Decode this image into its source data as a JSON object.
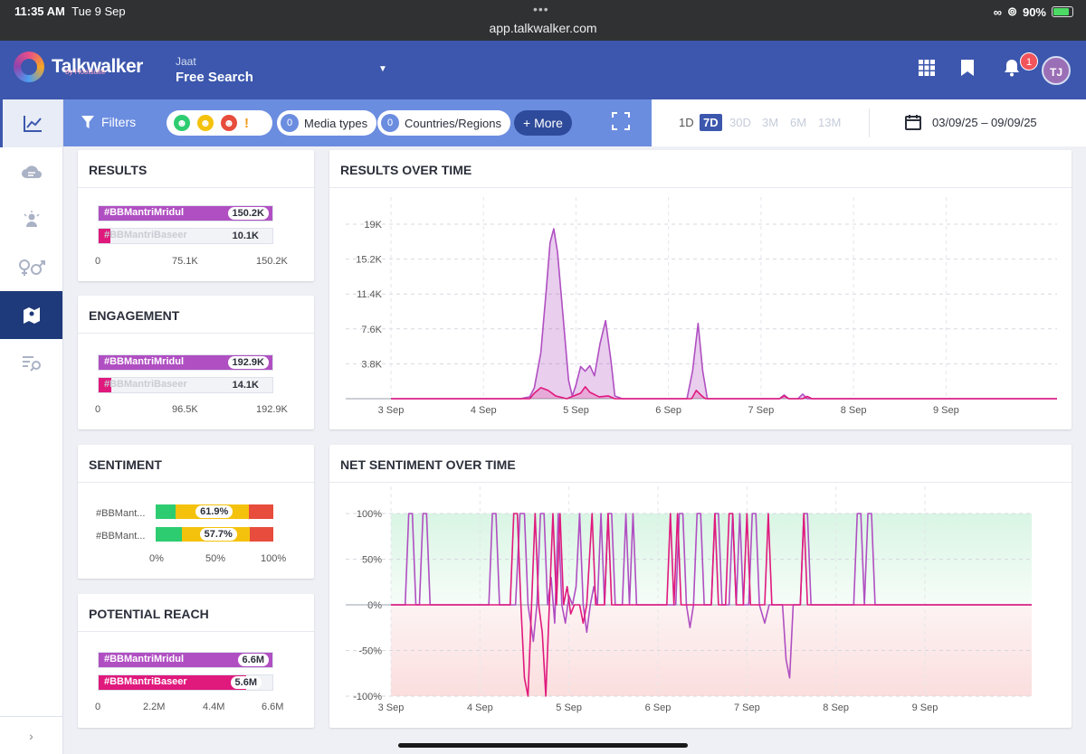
{
  "status": {
    "time": "11:35 AM",
    "date": "Tue 9 Sep",
    "url": "app.talkwalker.com",
    "battery": "90%"
  },
  "header": {
    "brand": "Talkwalker",
    "brand_sub": "by Hootsuite",
    "project_name": "Jaat",
    "project_title": "Free Search",
    "notifications": "1",
    "avatar": "TJ"
  },
  "filters": {
    "label": "Filters",
    "media_count": "0",
    "media_label": "Media types",
    "country_count": "0",
    "country_label": "Countries/Regions",
    "more": "+ More"
  },
  "range": {
    "options": [
      "1D",
      "7D",
      "30D",
      "3M",
      "6M",
      "13M"
    ],
    "active": "7D",
    "dates": "03/09/25 – 09/09/25"
  },
  "cards": {
    "results": {
      "title": "RESULTS",
      "rows": [
        {
          "label": "#BBMantriMridul",
          "value": "150.2K",
          "frac": 1.0
        },
        {
          "label": "#BBMantriBaseer",
          "value": "10.1K",
          "frac": 0.067
        }
      ],
      "ticks": [
        "0",
        "75.1K",
        "150.2K"
      ]
    },
    "engagement": {
      "title": "ENGAGEMENT",
      "rows": [
        {
          "label": "#BBMantriMridul",
          "value": "192.9K",
          "frac": 1.0
        },
        {
          "label": "#BBMantriBaseer",
          "value": "14.1K",
          "frac": 0.073
        }
      ],
      "ticks": [
        "0",
        "96.5K",
        "192.9K"
      ]
    },
    "sentiment": {
      "title": "SENTIMENT",
      "rows": [
        {
          "label": "#BBMant...",
          "value": "61.9%",
          "pos": 0.17,
          "neu": 0.62,
          "neg": 0.21
        },
        {
          "label": "#BBMant...",
          "value": "57.7%",
          "pos": 0.22,
          "neu": 0.58,
          "neg": 0.2
        }
      ],
      "ticks": [
        "0%",
        "50%",
        "100%"
      ]
    },
    "reach": {
      "title": "POTENTIAL REACH",
      "rows": [
        {
          "label": "#BBMantriMridul",
          "value": "6.6M",
          "frac": 1.0
        },
        {
          "label": "#BBMantriBaseer",
          "value": "5.6M",
          "frac": 0.85
        }
      ],
      "ticks": [
        "0",
        "2.2M",
        "4.4M",
        "6.6M"
      ]
    }
  },
  "rot": {
    "title": "RESULTS OVER TIME"
  },
  "nst": {
    "title": "NET SENTIMENT OVER TIME"
  },
  "colors": {
    "mridul": "#b04fc2",
    "baseer": "#e0197d",
    "positive": "#2ecc71",
    "neutral": "#f4c20d",
    "negative": "#e74c3c"
  },
  "chart_data": [
    {
      "type": "area",
      "title": "RESULTS OVER TIME",
      "x_ticks": [
        "3 Sep",
        "4 Sep",
        "5 Sep",
        "6 Sep",
        "7 Sep",
        "8 Sep",
        "9 Sep"
      ],
      "y_ticks": [
        "3.8K",
        "7.6K",
        "11.4K",
        "15.2K",
        "19K"
      ],
      "ylim": [
        0,
        19000
      ],
      "xlim": [
        3,
        10.2
      ],
      "series": [
        {
          "name": "#BBMantriMridul",
          "points": [
            [
              3,
              0
            ],
            [
              4.4,
              0
            ],
            [
              4.5,
              200
            ],
            [
              4.55,
              1200
            ],
            [
              4.62,
              5000
            ],
            [
              4.68,
              12000
            ],
            [
              4.72,
              17000
            ],
            [
              4.76,
              18500
            ],
            [
              4.8,
              16000
            ],
            [
              4.86,
              9000
            ],
            [
              4.92,
              2000
            ],
            [
              4.96,
              300
            ],
            [
              5.0,
              1500
            ],
            [
              5.05,
              3500
            ],
            [
              5.1,
              3000
            ],
            [
              5.15,
              3600
            ],
            [
              5.2,
              2500
            ],
            [
              5.26,
              6000
            ],
            [
              5.32,
              8500
            ],
            [
              5.38,
              4000
            ],
            [
              5.42,
              300
            ],
            [
              5.5,
              0
            ],
            [
              6.2,
              0
            ],
            [
              6.26,
              3000
            ],
            [
              6.32,
              8200
            ],
            [
              6.37,
              3000
            ],
            [
              6.42,
              0
            ],
            [
              7.2,
              0
            ],
            [
              7.25,
              400
            ],
            [
              7.3,
              0
            ],
            [
              7.4,
              0
            ],
            [
              7.45,
              500
            ],
            [
              7.5,
              0
            ],
            [
              10.2,
              0
            ]
          ]
        },
        {
          "name": "#BBMantriBaseer",
          "points": [
            [
              3,
              0
            ],
            [
              4.5,
              0
            ],
            [
              4.55,
              600
            ],
            [
              4.62,
              1200
            ],
            [
              4.7,
              900
            ],
            [
              4.78,
              300
            ],
            [
              4.9,
              0
            ],
            [
              5.05,
              600
            ],
            [
              5.1,
              1300
            ],
            [
              5.15,
              700
            ],
            [
              5.25,
              200
            ],
            [
              5.35,
              300
            ],
            [
              5.42,
              0
            ],
            [
              6.25,
              0
            ],
            [
              6.3,
              900
            ],
            [
              6.36,
              300
            ],
            [
              6.4,
              0
            ],
            [
              7.2,
              0
            ],
            [
              7.25,
              300
            ],
            [
              7.3,
              0
            ],
            [
              7.45,
              0
            ],
            [
              7.5,
              250
            ],
            [
              7.55,
              0
            ],
            [
              10.2,
              0
            ]
          ]
        }
      ]
    },
    {
      "type": "line",
      "title": "NET SENTIMENT OVER TIME",
      "x_ticks": [
        "3 Sep",
        "4 Sep",
        "5 Sep",
        "6 Sep",
        "7 Sep",
        "8 Sep",
        "9 Sep"
      ],
      "y_ticks": [
        "-100%",
        "-50%",
        "0%",
        "50%",
        "100%"
      ],
      "ylim": [
        -100,
        100
      ],
      "xlim": [
        3,
        10.2
      ],
      "series": [
        {
          "name": "#BBMantriMridul",
          "points": [
            [
              3,
              0
            ],
            [
              3.16,
              0
            ],
            [
              3.2,
              100
            ],
            [
              3.24,
              100
            ],
            [
              3.28,
              0
            ],
            [
              3.32,
              0
            ],
            [
              3.36,
              100
            ],
            [
              3.4,
              100
            ],
            [
              3.44,
              0
            ],
            [
              4.1,
              0
            ],
            [
              4.14,
              100
            ],
            [
              4.18,
              100
            ],
            [
              4.22,
              0
            ],
            [
              4.4,
              0
            ],
            [
              4.45,
              100
            ],
            [
              4.5,
              100
            ],
            [
              4.54,
              0
            ],
            [
              4.6,
              -40
            ],
            [
              4.64,
              0
            ],
            [
              4.68,
              100
            ],
            [
              4.72,
              100
            ],
            [
              4.76,
              0
            ],
            [
              4.8,
              30
            ],
            [
              4.84,
              -20
            ],
            [
              4.88,
              100
            ],
            [
              4.92,
              0
            ],
            [
              4.96,
              -20
            ],
            [
              5.0,
              10
            ],
            [
              5.04,
              0
            ],
            [
              5.08,
              20
            ],
            [
              5.12,
              100
            ],
            [
              5.16,
              0
            ],
            [
              5.2,
              -30
            ],
            [
              5.24,
              0
            ],
            [
              5.28,
              20
            ],
            [
              5.32,
              0
            ],
            [
              5.36,
              100
            ],
            [
              5.4,
              0
            ],
            [
              5.44,
              100
            ],
            [
              5.48,
              100
            ],
            [
              5.52,
              0
            ],
            [
              5.6,
              0
            ],
            [
              5.64,
              100
            ],
            [
              5.68,
              0
            ],
            [
              5.72,
              100
            ],
            [
              5.76,
              0
            ],
            [
              6.2,
              0
            ],
            [
              6.24,
              100
            ],
            [
              6.28,
              100
            ],
            [
              6.32,
              0
            ],
            [
              6.36,
              -25
            ],
            [
              6.4,
              0
            ],
            [
              6.44,
              100
            ],
            [
              6.48,
              100
            ],
            [
              6.52,
              0
            ],
            [
              6.6,
              0
            ],
            [
              6.64,
              100
            ],
            [
              6.68,
              100
            ],
            [
              6.72,
              0
            ],
            [
              6.8,
              0
            ],
            [
              6.84,
              100
            ],
            [
              6.88,
              0
            ],
            [
              6.92,
              100
            ],
            [
              6.96,
              0
            ],
            [
              7.02,
              0
            ],
            [
              7.06,
              100
            ],
            [
              7.1,
              100
            ],
            [
              7.14,
              0
            ],
            [
              7.2,
              -20
            ],
            [
              7.25,
              0
            ],
            [
              7.4,
              0
            ],
            [
              7.44,
              -60
            ],
            [
              7.48,
              -80
            ],
            [
              7.52,
              0
            ],
            [
              7.6,
              0
            ],
            [
              7.64,
              100
            ],
            [
              7.68,
              100
            ],
            [
              7.72,
              0
            ],
            [
              8.2,
              0
            ],
            [
              8.24,
              100
            ],
            [
              8.28,
              100
            ],
            [
              8.32,
              0
            ],
            [
              8.36,
              100
            ],
            [
              8.4,
              100
            ],
            [
              8.44,
              0
            ],
            [
              10.2,
              0
            ]
          ]
        },
        {
          "name": "#BBMantriBaseer",
          "points": [
            [
              3,
              0
            ],
            [
              4.34,
              0
            ],
            [
              4.38,
              100
            ],
            [
              4.42,
              100
            ],
            [
              4.46,
              0
            ],
            [
              4.5,
              -80
            ],
            [
              4.54,
              -100
            ],
            [
              4.58,
              0
            ],
            [
              4.62,
              100
            ],
            [
              4.66,
              0
            ],
            [
              4.7,
              -30
            ],
            [
              4.74,
              -100
            ],
            [
              4.78,
              0
            ],
            [
              4.82,
              100
            ],
            [
              4.86,
              0
            ],
            [
              4.9,
              100
            ],
            [
              4.94,
              0
            ],
            [
              4.98,
              20
            ],
            [
              5.02,
              -10
            ],
            [
              5.06,
              0
            ],
            [
              5.12,
              0
            ],
            [
              5.16,
              -20
            ],
            [
              5.2,
              0
            ],
            [
              5.26,
              100
            ],
            [
              5.3,
              0
            ],
            [
              5.4,
              0
            ],
            [
              5.44,
              100
            ],
            [
              5.48,
              0
            ],
            [
              6.1,
              0
            ],
            [
              6.14,
              100
            ],
            [
              6.18,
              0
            ],
            [
              6.22,
              100
            ],
            [
              6.26,
              0
            ],
            [
              6.6,
              0
            ],
            [
              6.64,
              100
            ],
            [
              6.68,
              0
            ],
            [
              6.76,
              0
            ],
            [
              6.8,
              100
            ],
            [
              6.84,
              100
            ],
            [
              6.88,
              0
            ],
            [
              6.96,
              0
            ],
            [
              7.0,
              100
            ],
            [
              7.04,
              0
            ],
            [
              7.2,
              0
            ],
            [
              7.24,
              100
            ],
            [
              7.28,
              0
            ],
            [
              7.6,
              0
            ],
            [
              7.64,
              100
            ],
            [
              7.68,
              0
            ],
            [
              10.2,
              0
            ]
          ]
        }
      ]
    }
  ]
}
